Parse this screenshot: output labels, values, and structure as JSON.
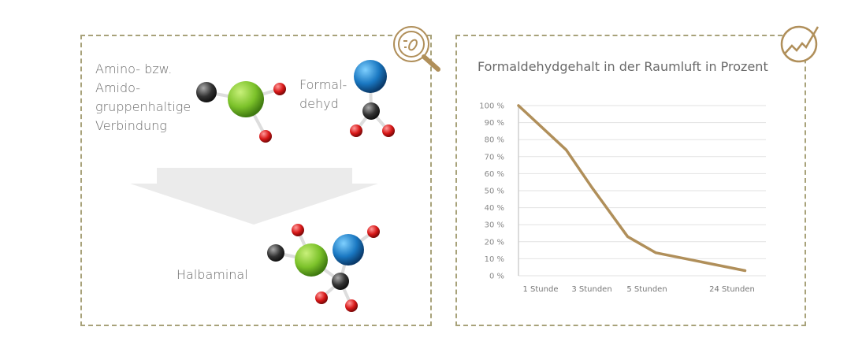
{
  "diagram": {
    "reactant1_lines": [
      "Amino- bzw.",
      "Amido-",
      "gruppenhaltige",
      "Verbindung"
    ],
    "reactant2_lines": [
      "Formal-",
      "dehyd"
    ],
    "product": "Halbaminal",
    "icons": [
      "magnifier-bacteria-icon",
      "trend-chart-icon"
    ]
  },
  "colors": {
    "accent": "#b08f5a",
    "border": "#a8a27a",
    "arrow": "#ebebeb"
  },
  "chart_data": {
    "type": "line",
    "title": "Formaldehydgehalt in der Raumluft in Prozent",
    "x_tick_labels": [
      "1 Stunde",
      "3 Stunden",
      "5 Stunden",
      "24 Stunden"
    ],
    "y_tick_labels": [
      "0 %",
      "10 %",
      "20 %",
      "30 %",
      "40 %",
      "50 %",
      "60 %",
      "70 %",
      "80 %",
      "90 %",
      "100 %"
    ],
    "ylim": [
      0,
      100
    ],
    "grid": true,
    "series": [
      {
        "points": [
          {
            "x_hours": 0,
            "y": 100
          },
          {
            "x_hours": 2,
            "y": 74
          },
          {
            "x_hours": 3,
            "y": 52
          },
          {
            "x_hours": 4.3,
            "y": 23
          },
          {
            "x_hours": 7,
            "y": 13.5
          },
          {
            "x_hours": 27,
            "y": 3
          }
        ]
      }
    ]
  }
}
